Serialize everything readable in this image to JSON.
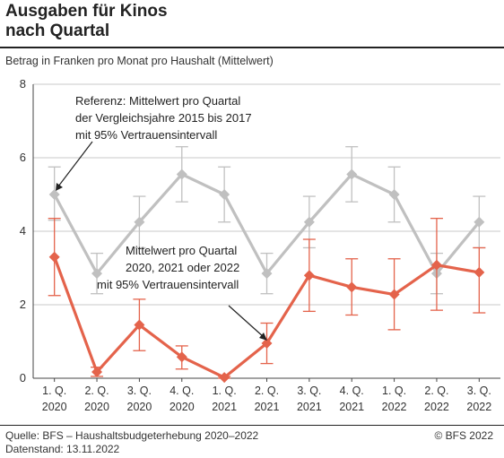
{
  "title_line1": "Ausgaben für Kinos",
  "title_line2": "nach Quartal",
  "subtitle": "Betrag in Franken pro Monat pro Haushalt (Mittelwert)",
  "source_line": "Quelle: BFS – Haushaltsbudgeterhebung 2020–2022",
  "date_line": "Datenstand: 13.11.2022",
  "copyright": "© BFS 2022",
  "colors": {
    "reference": "#c0c0c0",
    "current": "#e4634b",
    "grid": "#c8c8c8",
    "axis": "#444444"
  },
  "chart_data": {
    "type": "line",
    "title": "Ausgaben für Kinos nach Quartal",
    "ylabel": "Betrag in Franken pro Monat pro Haushalt (Mittelwert)",
    "ylim": [
      0,
      8
    ],
    "yticks": [
      0,
      2,
      4,
      6,
      8
    ],
    "grid": true,
    "categories": [
      [
        "1. Q.",
        "2020"
      ],
      [
        "2. Q.",
        "2020"
      ],
      [
        "3. Q.",
        "2020"
      ],
      [
        "4. Q.",
        "2020"
      ],
      [
        "1. Q.",
        "2021"
      ],
      [
        "2. Q.",
        "2021"
      ],
      [
        "3. Q.",
        "2021"
      ],
      [
        "4. Q.",
        "2021"
      ],
      [
        "1. Q.",
        "2022"
      ],
      [
        "2. Q.",
        "2022"
      ],
      [
        "3. Q.",
        "2022"
      ]
    ],
    "series": [
      {
        "color": "#c0c0c0",
        "values": [
          5.0,
          2.85,
          4.25,
          5.55,
          5.0,
          2.85,
          4.25,
          5.55,
          5.0,
          2.85,
          4.25
        ],
        "lower": [
          4.3,
          2.3,
          3.55,
          4.8,
          4.25,
          2.3,
          3.55,
          4.8,
          4.25,
          2.3,
          3.55
        ],
        "upper": [
          5.75,
          3.4,
          4.95,
          6.3,
          5.75,
          3.4,
          4.95,
          6.3,
          5.75,
          3.4,
          4.95
        ]
      },
      {
        "color": "#e4634b",
        "values": [
          3.3,
          0.17,
          1.45,
          0.58,
          0.02,
          0.95,
          2.8,
          2.48,
          2.28,
          3.08,
          2.88
        ],
        "lower": [
          2.25,
          0.05,
          0.75,
          0.25,
          0.0,
          0.4,
          1.82,
          1.72,
          1.32,
          1.85,
          1.78
        ],
        "upper": [
          4.35,
          0.3,
          2.15,
          0.88,
          0.05,
          1.5,
          3.78,
          3.25,
          3.25,
          4.35,
          3.55
        ]
      }
    ],
    "annotations": [
      {
        "lines": [
          "Referenz: Mittelwert pro Quartal",
          "der Vergleichsjahre 2015 bis 2017",
          "mit 95% Vertrauensintervall"
        ]
      },
      {
        "lines": [
          "Mittelwert pro Quartal",
          "2020, 2021 oder 2022",
          "mit 95% Vertrauensintervall"
        ]
      }
    ]
  }
}
